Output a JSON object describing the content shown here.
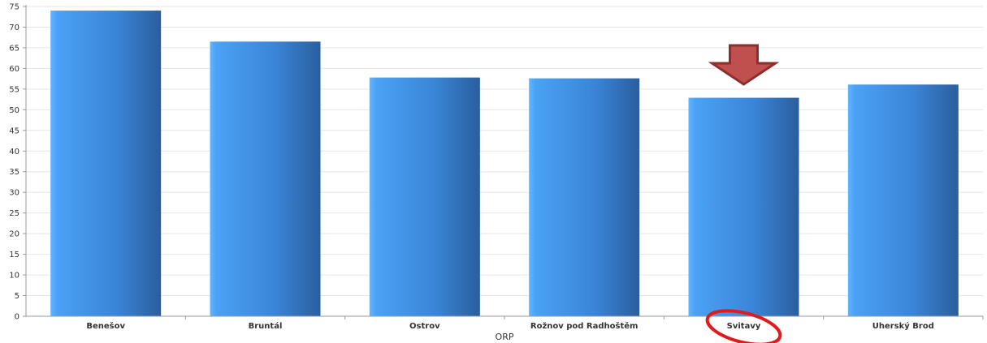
{
  "chart_data": {
    "type": "bar",
    "title": "",
    "xlabel": "ORP",
    "ylabel": "",
    "ylim": [
      0,
      75
    ],
    "yticks": [
      0,
      5,
      10,
      15,
      20,
      25,
      30,
      35,
      40,
      45,
      50,
      55,
      60,
      65,
      70,
      75
    ],
    "grid": true,
    "categories": [
      "Benešov",
      "Bruntál",
      "Ostrov",
      "Rožnov pod Radhoštěm",
      "Svitavy",
      "Uherský Brod"
    ],
    "values": [
      74,
      66.5,
      57.8,
      57.6,
      52.9,
      56.1
    ],
    "colors": {
      "bar_light": "#4da3f5",
      "bar_dark": "#2563a8",
      "annotation": "#c0504d",
      "highlight_circle": "#e01b1b"
    },
    "annotations": {
      "reference_line_value": 52.3,
      "arrow_category": "Svitavy",
      "circled_category": "Svitavy"
    }
  }
}
